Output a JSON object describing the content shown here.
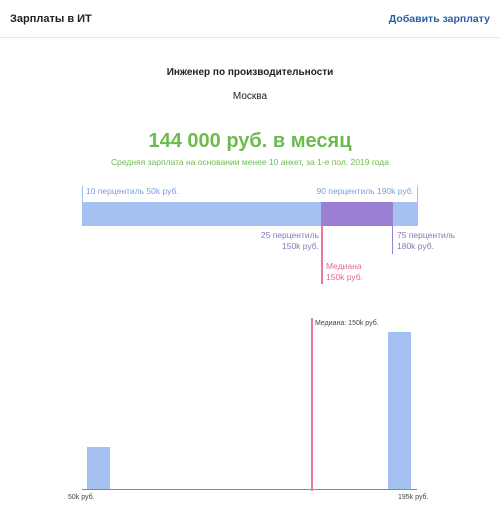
{
  "header": {
    "title": "Зарплаты в ИТ",
    "add_salary": "Добавить зарплату"
  },
  "job": {
    "title": "Инженер по производительности",
    "city": "Москва"
  },
  "salary": {
    "main": "144 000 руб. в месяц",
    "subtitle": "Средняя зарплата на основании менее 10 анкет, за 1-е пол. 2019 года"
  },
  "percentiles": {
    "p10": "10 перцентиль 50k руб.",
    "p90": "90 перцентиль 190k руб.",
    "p25_line1": "25 перцентиль",
    "p25_line2": "150k руб.",
    "p75_line1": "75 перцентиль",
    "p75_line2": "180k руб.",
    "median_line1": "Медиана",
    "median_line2": "150k руб."
  },
  "colors": {
    "accent_green": "#6cbb4f",
    "bar_blue": "#a5c1f2",
    "iqr_purple": "#9b7fd4",
    "median_pink": "#e879a6",
    "link_blue": "#2b5fa8"
  },
  "chart_data": {
    "type": "bar",
    "x": [
      "50k руб.",
      "195k руб."
    ],
    "values": [
      4,
      15
    ],
    "median_label": "Медиана: 150k руб.",
    "median_value": 150,
    "x_min_label": "50k руб.",
    "x_max_label": "195k руб.",
    "x_range": [
      50,
      195
    ]
  }
}
